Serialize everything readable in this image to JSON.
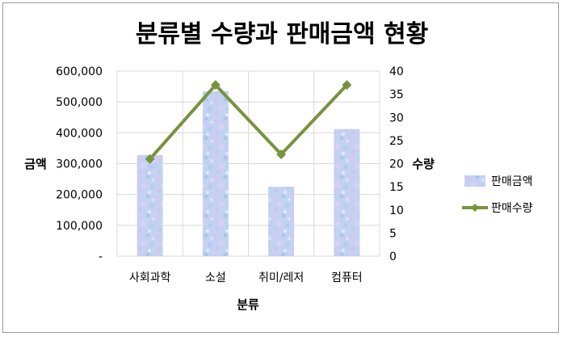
{
  "chart_data": {
    "type": "bar",
    "title": "분류별 수량과 판매금액 현황",
    "categories": [
      "사회과학",
      "소설",
      "취미/레저",
      "컴퓨터"
    ],
    "xlabel": "분류",
    "ylabel": "금액",
    "y2label": "수량",
    "ylim": [
      0,
      600000
    ],
    "y2lim": [
      0,
      40
    ],
    "yticks": [
      "-",
      "100,000",
      "200,000",
      "300,000",
      "400,000",
      "500,000",
      "600,000"
    ],
    "y2ticks": [
      "0",
      "5",
      "10",
      "15",
      "20",
      "25",
      "30",
      "35",
      "40"
    ],
    "grid": true,
    "legend_position": "right",
    "series": [
      {
        "name": "판매금액",
        "type": "bar",
        "axis": "left",
        "values": [
          328000,
          535000,
          225000,
          412000
        ],
        "color": "#b9c9f0"
      },
      {
        "name": "판매수량",
        "type": "line",
        "axis": "right",
        "values": [
          21,
          37,
          22,
          37
        ],
        "color": "#77933c"
      }
    ]
  }
}
